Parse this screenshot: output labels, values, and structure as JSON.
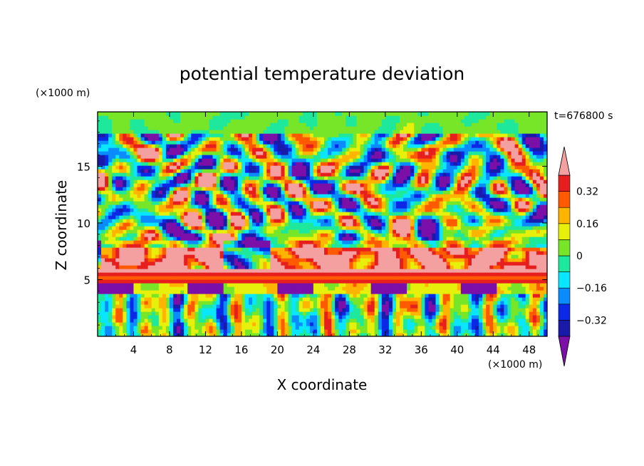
{
  "chart_data": {
    "type": "heatmap",
    "title": "potential temperature deviation",
    "xlabel": "X coordinate",
    "ylabel": "Z coordinate",
    "x_unit": "(×1000 m)",
    "y_unit": "(×1000 m)",
    "time_label": "t=676800 s",
    "xlim": [
      0,
      50
    ],
    "ylim": [
      0,
      19.8
    ],
    "x_ticks": [
      4,
      8,
      12,
      16,
      20,
      24,
      28,
      32,
      36,
      40,
      44,
      48
    ],
    "y_ticks": [
      5,
      10,
      15
    ],
    "colorbar": {
      "tick_labels": [
        "0.32",
        "0.16",
        "0",
        "−0.16",
        "−0.32"
      ],
      "tick_values": [
        0.32,
        0.16,
        0,
        -0.16,
        -0.32
      ],
      "levels": [
        -0.4,
        -0.32,
        -0.24,
        -0.16,
        -0.08,
        0,
        0.08,
        0.16,
        0.24,
        0.32,
        0.4
      ],
      "colors": [
        "#7b0fa8",
        "#1a1aa8",
        "#0a28e6",
        "#0a8cff",
        "#0ae6ff",
        "#1ee89b",
        "#78e628",
        "#e6f00a",
        "#ffb400",
        "#ff5a00",
        "#e61e1e",
        "#f5a0a0"
      ],
      "extend": "both"
    },
    "structure": [
      {
        "z_range": [
          0,
          4
        ],
        "description": "lower layer with vertical convective plumes, values about -0.3 to 0.4"
      },
      {
        "z_range": [
          4,
          8.5
        ],
        "description": "strong stable band, positive above 0.4 near 4-8 km with negative patches"
      },
      {
        "z_range": [
          8.5,
          18
        ],
        "description": "upper turbulent layer with alternating positive and negative blobs"
      },
      {
        "z_range": [
          18,
          19.8
        ],
        "description": "near zero values at top"
      }
    ]
  }
}
